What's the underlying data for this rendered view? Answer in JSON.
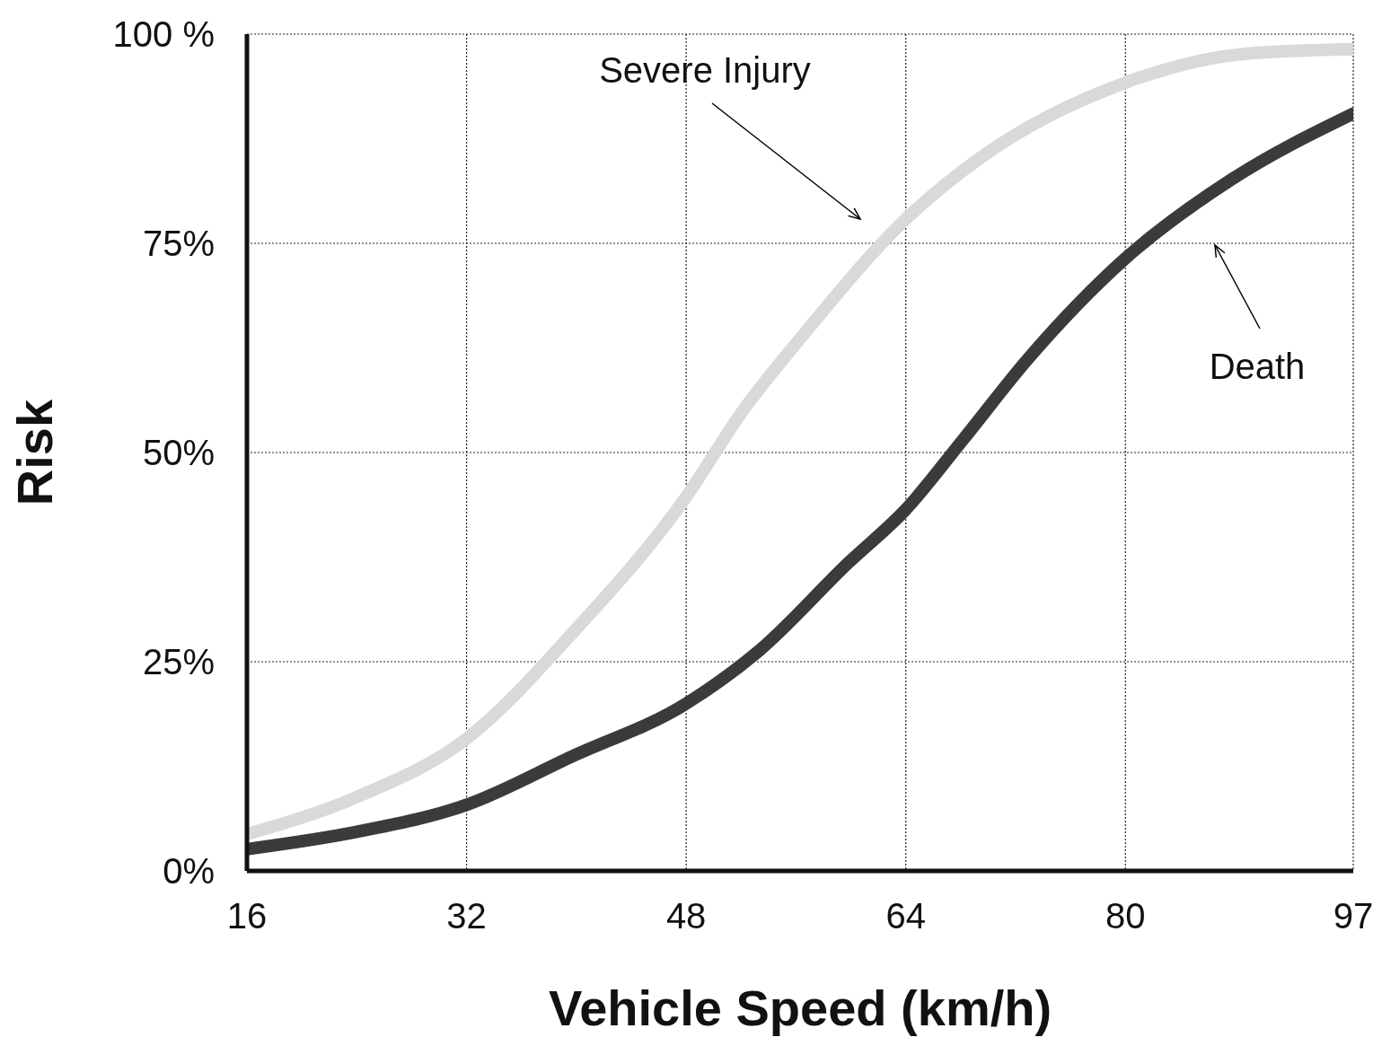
{
  "chart_data": {
    "type": "line",
    "xlabel": "Vehicle Speed (km/h)",
    "ylabel": "Risk",
    "xlim": [
      16,
      96.6
    ],
    "xticks": [
      16,
      32,
      48,
      64,
      80,
      {
        "value": 96.6,
        "label": "97"
      }
    ],
    "ylim": [
      0,
      100
    ],
    "yticks": [
      {
        "value": 0,
        "label": "0%"
      },
      {
        "value": 25,
        "label": "25%"
      },
      {
        "value": 50,
        "label": "50%"
      },
      {
        "value": 75,
        "label": "75%"
      },
      {
        "value": 100,
        "label": "100 %"
      }
    ],
    "grid": true,
    "legend": false,
    "marker": "none",
    "line_style": "solid",
    "series": [
      {
        "color": "#d9d9d9",
        "x": [
          16,
          24.1,
          32,
          39.7,
          48,
          52,
          56.6,
          64,
          69.5,
          80,
          89,
          96.6
        ],
        "values": [
          4.4,
          8.9,
          15.8,
          28.4,
          44.7,
          54.7,
          64.2,
          77.9,
          85.3,
          94.2,
          97.7,
          98.2
        ]
      },
      {
        "color": "#3d3a3a",
        "x": [
          16,
          24.1,
          32,
          39.7,
          48,
          53.3,
          59.8,
          64,
          68.2,
          72.8,
          80,
          87.7,
          96.6
        ],
        "values": [
          2.6,
          4.7,
          7.9,
          13.7,
          20,
          26.3,
          36.8,
          43.2,
          51.6,
          61,
          73.2,
          82.6,
          90.5
        ]
      }
    ],
    "annotations": [
      "Severe Injury",
      "Death"
    ]
  }
}
